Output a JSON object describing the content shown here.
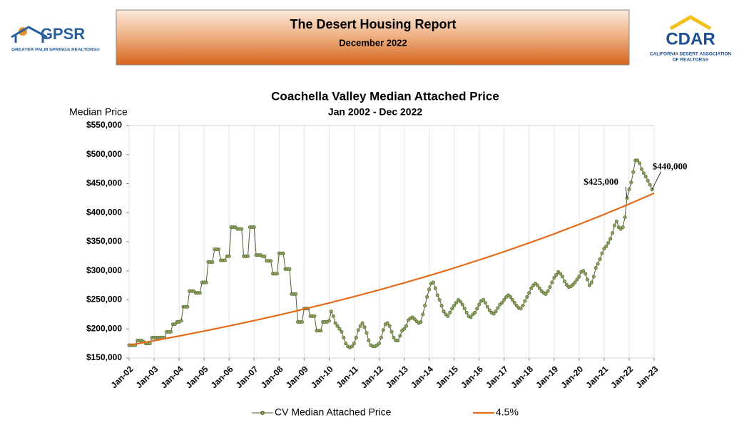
{
  "header": {
    "title": "The Desert Housing Report",
    "subtitle": "December 2022",
    "left_logo": {
      "name": "GPSR",
      "tagline": "GREATER PALM SPRINGS REALTORS®"
    },
    "right_logo": {
      "name": "CDAR",
      "tagline_1": "CALIFORNIA DESERT ASSOCIATION",
      "tagline_2": "OF REALTORS®"
    }
  },
  "chart_data": {
    "type": "line",
    "title": "Coachella Valley Median Attached Price",
    "subtitle": "Jan 2002 - Dec 2022",
    "y_label": "Median Price",
    "grid": "x",
    "legend": "bottom",
    "ylim": [
      150000,
      550000
    ],
    "yticks": [
      {
        "value": 150000,
        "label": "$150,000"
      },
      {
        "value": 200000,
        "label": "$200,000"
      },
      {
        "value": 250000,
        "label": "$250,000"
      },
      {
        "value": 300000,
        "label": "$300,000"
      },
      {
        "value": 350000,
        "label": "$350,000"
      },
      {
        "value": 400000,
        "label": "$400,000"
      },
      {
        "value": 450000,
        "label": "$450,000"
      },
      {
        "value": 500000,
        "label": "$500,000"
      },
      {
        "value": 550000,
        "label": "$550,000"
      }
    ],
    "categories": [
      "Jan-02",
      null,
      null,
      null,
      null,
      null,
      null,
      null,
      null,
      null,
      null,
      null,
      "Jan-03",
      null,
      null,
      null,
      null,
      null,
      null,
      null,
      null,
      null,
      null,
      null,
      "Jan-04",
      null,
      null,
      null,
      null,
      null,
      null,
      null,
      null,
      null,
      null,
      null,
      "Jan-05",
      null,
      null,
      null,
      null,
      null,
      null,
      null,
      null,
      null,
      null,
      null,
      "Jan-06",
      null,
      null,
      null,
      null,
      null,
      null,
      null,
      null,
      null,
      null,
      null,
      "Jan-07",
      null,
      null,
      null,
      null,
      null,
      null,
      null,
      null,
      null,
      null,
      null,
      "Jan-08",
      null,
      null,
      null,
      null,
      null,
      null,
      null,
      null,
      null,
      null,
      null,
      "Jan-09",
      null,
      null,
      null,
      null,
      null,
      null,
      null,
      null,
      null,
      null,
      null,
      "Jan-10",
      null,
      null,
      null,
      null,
      null,
      null,
      null,
      null,
      null,
      null,
      null,
      "Jan-11",
      null,
      null,
      null,
      null,
      null,
      null,
      null,
      null,
      null,
      null,
      null,
      "Jan-12",
      null,
      null,
      null,
      null,
      null,
      null,
      null,
      null,
      null,
      null,
      null,
      "Jan-13",
      null,
      null,
      null,
      null,
      null,
      null,
      null,
      null,
      null,
      null,
      null,
      "Jan-14",
      null,
      null,
      null,
      null,
      null,
      null,
      null,
      null,
      null,
      null,
      null,
      "Jan-15",
      null,
      null,
      null,
      null,
      null,
      null,
      null,
      null,
      null,
      null,
      null,
      "Jan-16",
      null,
      null,
      null,
      null,
      null,
      null,
      null,
      null,
      null,
      null,
      null,
      "Jan-17",
      null,
      null,
      null,
      null,
      null,
      null,
      null,
      null,
      null,
      null,
      null,
      "Jan-18",
      null,
      null,
      null,
      null,
      null,
      null,
      null,
      null,
      null,
      null,
      null,
      "Jan-19",
      null,
      null,
      null,
      null,
      null,
      null,
      null,
      null,
      null,
      null,
      null,
      "Jan-20",
      null,
      null,
      null,
      null,
      null,
      null,
      null,
      null,
      null,
      null,
      null,
      "Jan-21",
      null,
      null,
      null,
      null,
      null,
      null,
      null,
      null,
      null,
      null,
      null,
      "Jan-22",
      null,
      null,
      null,
      null,
      null,
      null,
      null,
      null,
      null,
      null,
      null,
      "Jan-23"
    ],
    "series": [
      {
        "name": "CV Median Attached Price",
        "color": "#4d5d2c",
        "marker_color": "#8aa35a",
        "values": [
          172000,
          172000,
          172000,
          172000,
          180000,
          180000,
          180000,
          178000,
          175000,
          175000,
          175000,
          185000,
          185000,
          185000,
          185000,
          185000,
          185000,
          185000,
          195000,
          195000,
          195000,
          208000,
          208000,
          212000,
          212000,
          214000,
          238000,
          238000,
          238000,
          265000,
          265000,
          265000,
          262000,
          262000,
          262000,
          280000,
          280000,
          280000,
          315000,
          315000,
          315000,
          337000,
          337000,
          337000,
          318000,
          318000,
          318000,
          325000,
          325000,
          375000,
          375000,
          375000,
          372000,
          372000,
          372000,
          325000,
          325000,
          325000,
          375000,
          375000,
          375000,
          327000,
          327000,
          327000,
          325000,
          325000,
          317000,
          317000,
          317000,
          295000,
          295000,
          295000,
          330000,
          330000,
          330000,
          303000,
          303000,
          303000,
          260000,
          260000,
          260000,
          212000,
          212000,
          212000,
          235000,
          235000,
          235000,
          222000,
          222000,
          222000,
          197000,
          197000,
          197000,
          212000,
          212000,
          212000,
          214000,
          230000,
          222000,
          210000,
          205000,
          200000,
          195000,
          185000,
          175000,
          170000,
          168000,
          170000,
          175000,
          185000,
          198000,
          205000,
          210000,
          203000,
          193000,
          180000,
          172000,
          170000,
          170000,
          172000,
          175000,
          185000,
          198000,
          208000,
          210000,
          205000,
          195000,
          185000,
          180000,
          180000,
          188000,
          197000,
          200000,
          205000,
          215000,
          218000,
          220000,
          217000,
          213000,
          210000,
          212000,
          225000,
          240000,
          255000,
          268000,
          278000,
          280000,
          270000,
          258000,
          250000,
          240000,
          230000,
          225000,
          222000,
          228000,
          235000,
          240000,
          245000,
          250000,
          247000,
          242000,
          235000,
          228000,
          222000,
          220000,
          225000,
          228000,
          235000,
          242000,
          248000,
          250000,
          245000,
          238000,
          232000,
          228000,
          226000,
          230000,
          236000,
          242000,
          245000,
          250000,
          255000,
          258000,
          255000,
          250000,
          245000,
          240000,
          236000,
          235000,
          240000,
          248000,
          255000,
          262000,
          270000,
          275000,
          278000,
          275000,
          270000,
          265000,
          262000,
          260000,
          265000,
          272000,
          280000,
          288000,
          293000,
          298000,
          295000,
          290000,
          282000,
          276000,
          272000,
          273000,
          276000,
          280000,
          285000,
          290000,
          298000,
          300000,
          295000,
          285000,
          275000,
          280000,
          290000,
          305000,
          312000,
          320000,
          330000,
          338000,
          342000,
          348000,
          355000,
          365000,
          378000,
          385000,
          375000,
          372000,
          375000,
          392000,
          425000,
          440000,
          452000,
          470000,
          490000,
          490000,
          485000,
          475000,
          468000,
          462000,
          455000,
          448000,
          440000,
          null
        ]
      },
      {
        "name": "4.5%",
        "color": "#e36c1c",
        "values": [
          172000,
          172600,
          173300,
          173900,
          174600,
          175200,
          175900,
          176500,
          177100,
          177800,
          178400,
          179100,
          179700,
          180400,
          181100,
          181700,
          182400,
          183100,
          183800,
          184400,
          185100,
          185800,
          186500,
          187100,
          187800,
          188500,
          189200,
          189900,
          190600,
          191400,
          192100,
          192800,
          193500,
          194200,
          194900,
          195600,
          196300,
          197000,
          197800,
          198500,
          199200,
          200000,
          200700,
          201400,
          202200,
          202900,
          203600,
          204400,
          205100,
          205900,
          206600,
          207400,
          208200,
          208900,
          209700,
          210500,
          211200,
          212000,
          212800,
          213500,
          214300,
          215100,
          215900,
          216700,
          217500,
          218300,
          219200,
          220000,
          220800,
          221600,
          222400,
          223200,
          224000,
          224800,
          225700,
          226500,
          227400,
          228200,
          229100,
          229900,
          230700,
          231600,
          232400,
          233300,
          234100,
          235000,
          235900,
          236700,
          237600,
          238500,
          239400,
          240200,
          241100,
          242000,
          242900,
          243700,
          244600,
          245500,
          246400,
          247400,
          248300,
          249200,
          250100,
          251000,
          251900,
          252900,
          253800,
          254700,
          255600,
          256600,
          257500,
          258500,
          259400,
          260400,
          261400,
          262300,
          263300,
          264200,
          265200,
          266100,
          267100,
          268100,
          269100,
          270100,
          271100,
          272100,
          273200,
          274200,
          275200,
          276200,
          277200,
          278200,
          279200,
          280200,
          281300,
          282300,
          283400,
          284400,
          285500,
          286500,
          287500,
          288600,
          289600,
          290700,
          291700,
          292800,
          293900,
          295000,
          296100,
          297200,
          298300,
          299300,
          300400,
          301500,
          302600,
          303700,
          304800,
          306000,
          307100,
          308300,
          309400,
          310600,
          311700,
          312900,
          314000,
          315200,
          316300,
          317500,
          318600,
          319800,
          321000,
          322200,
          323400,
          324600,
          325800,
          327000,
          328100,
          329300,
          330500,
          331700,
          332900,
          334200,
          335400,
          336700,
          337900,
          339200,
          340400,
          341700,
          342900,
          344200,
          345400,
          346700,
          347900,
          349200,
          350500,
          351800,
          353100,
          354400,
          355700,
          357000,
          358300,
          359600,
          360900,
          362200,
          363500,
          364900,
          366200,
          367600,
          369000,
          370300,
          371700,
          373100,
          374400,
          375800,
          377200,
          378500,
          379900,
          381300,
          382800,
          384200,
          385600,
          387000,
          388500,
          389900,
          391300,
          392700,
          394100,
          395600,
          397000,
          398500,
          400000,
          401500,
          403000,
          404500,
          405900,
          407400,
          408900,
          410400,
          411900,
          413400,
          414900,
          416500,
          418000,
          419600,
          421100,
          422700,
          424200,
          425800,
          427300,
          428900,
          430400,
          432000,
          433500
        ]
      }
    ],
    "annotations": [
      {
        "label": "$425,000",
        "value": 425000
      },
      {
        "label": "$440,000",
        "value": 440000
      }
    ]
  }
}
